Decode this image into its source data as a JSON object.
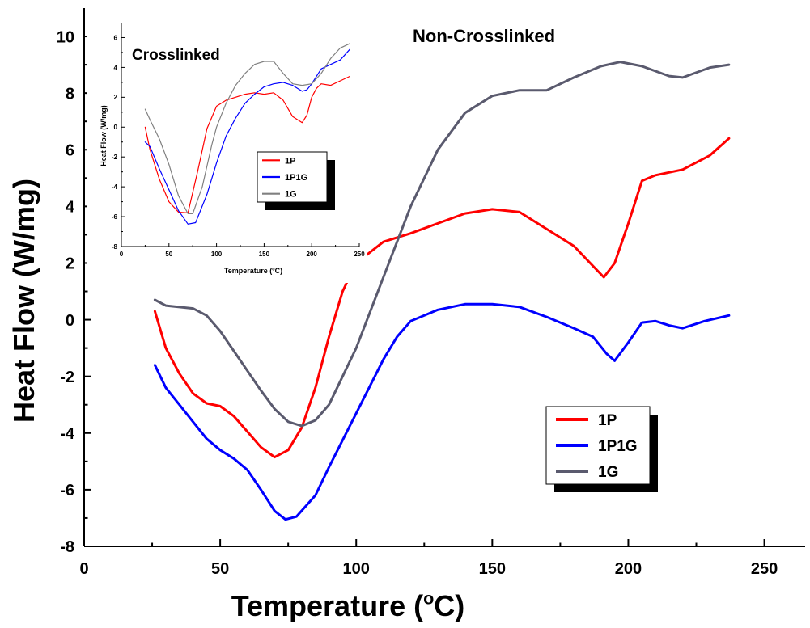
{
  "chart_data": [
    {
      "type": "line",
      "annotation": "Non-Crosslinked",
      "xlabel": "Temperature (",
      "xlabel_sup": "o",
      "xlabel_suffix": "C)",
      "ylabel": "Heat Flow (W/mg)",
      "xlim": [
        0,
        265
      ],
      "ylim": [
        -8,
        11
      ],
      "xticks": [
        0,
        50,
        100,
        150,
        200,
        250
      ],
      "yticks": [
        -8,
        -6,
        -4,
        -2,
        0,
        2,
        4,
        6,
        8,
        10
      ],
      "legend_position": "bottom-right",
      "series": [
        {
          "name": "1P",
          "color": "#ff0000",
          "points": [
            [
              26,
              0.3
            ],
            [
              30,
              -1.0
            ],
            [
              35,
              -1.9
            ],
            [
              40,
              -2.6
            ],
            [
              45,
              -2.95
            ],
            [
              50,
              -3.05
            ],
            [
              55,
              -3.4
            ],
            [
              60,
              -3.95
            ],
            [
              65,
              -4.5
            ],
            [
              70,
              -4.85
            ],
            [
              75,
              -4.6
            ],
            [
              80,
              -3.8
            ],
            [
              85,
              -2.4
            ],
            [
              90,
              -0.6
            ],
            [
              95,
              1.0
            ],
            [
              100,
              2.0
            ],
            [
              110,
              2.75
            ],
            [
              120,
              3.05
            ],
            [
              130,
              3.4
            ],
            [
              140,
              3.75
            ],
            [
              150,
              3.9
            ],
            [
              160,
              3.8
            ],
            [
              170,
              3.2
            ],
            [
              180,
              2.6
            ],
            [
              187,
              1.9
            ],
            [
              191,
              1.5
            ],
            [
              195,
              2.0
            ],
            [
              200,
              3.4
            ],
            [
              205,
              4.9
            ],
            [
              210,
              5.1
            ],
            [
              220,
              5.3
            ],
            [
              230,
              5.8
            ],
            [
              237,
              6.4
            ]
          ]
        },
        {
          "name": "1P1G",
          "color": "#0000ff",
          "points": [
            [
              26,
              -1.6
            ],
            [
              30,
              -2.4
            ],
            [
              35,
              -3.0
            ],
            [
              40,
              -3.6
            ],
            [
              45,
              -4.2
            ],
            [
              50,
              -4.6
            ],
            [
              55,
              -4.9
            ],
            [
              60,
              -5.3
            ],
            [
              65,
              -6.0
            ],
            [
              70,
              -6.75
            ],
            [
              74,
              -7.05
            ],
            [
              78,
              -6.95
            ],
            [
              85,
              -6.2
            ],
            [
              90,
              -5.2
            ],
            [
              100,
              -3.3
            ],
            [
              110,
              -1.4
            ],
            [
              115,
              -0.6
            ],
            [
              120,
              -0.05
            ],
            [
              130,
              0.35
            ],
            [
              140,
              0.55
            ],
            [
              150,
              0.55
            ],
            [
              160,
              0.45
            ],
            [
              170,
              0.1
            ],
            [
              180,
              -0.3
            ],
            [
              187,
              -0.6
            ],
            [
              192,
              -1.2
            ],
            [
              195,
              -1.45
            ],
            [
              200,
              -0.8
            ],
            [
              205,
              -0.1
            ],
            [
              210,
              -0.05
            ],
            [
              215,
              -0.2
            ],
            [
              220,
              -0.3
            ],
            [
              228,
              -0.05
            ],
            [
              237,
              0.15
            ]
          ]
        },
        {
          "name": "1G",
          "color": "#5a5a6e",
          "points": [
            [
              26,
              0.7
            ],
            [
              30,
              0.5
            ],
            [
              40,
              0.4
            ],
            [
              45,
              0.15
            ],
            [
              50,
              -0.4
            ],
            [
              55,
              -1.1
            ],
            [
              60,
              -1.8
            ],
            [
              65,
              -2.5
            ],
            [
              70,
              -3.15
            ],
            [
              75,
              -3.6
            ],
            [
              80,
              -3.75
            ],
            [
              85,
              -3.55
            ],
            [
              90,
              -3.0
            ],
            [
              100,
              -1.0
            ],
            [
              110,
              1.5
            ],
            [
              120,
              4.0
            ],
            [
              130,
              6.0
            ],
            [
              140,
              7.3
            ],
            [
              150,
              7.9
            ],
            [
              160,
              8.1
            ],
            [
              170,
              8.1
            ],
            [
              180,
              8.55
            ],
            [
              190,
              8.95
            ],
            [
              197,
              9.1
            ],
            [
              205,
              8.95
            ],
            [
              215,
              8.6
            ],
            [
              220,
              8.55
            ],
            [
              230,
              8.9
            ],
            [
              237,
              9.0
            ]
          ]
        }
      ]
    },
    {
      "type": "line",
      "annotation": "Crosslinked",
      "xlabel": "Temperature (",
      "xlabel_sup": "o",
      "xlabel_suffix": "C)",
      "ylabel": "Heat Flow (W/mg)",
      "xlim": [
        0,
        250
      ],
      "ylim": [
        -8,
        7
      ],
      "xticks": [
        0,
        50,
        100,
        150,
        200,
        250
      ],
      "yticks": [
        -8,
        -6,
        -4,
        -2,
        0,
        2,
        4,
        6
      ],
      "legend_position": "center",
      "series": [
        {
          "name": "1P",
          "color": "#ff0000",
          "points": [
            [
              25,
              0
            ],
            [
              30,
              -1.5
            ],
            [
              40,
              -3.5
            ],
            [
              50,
              -5.0
            ],
            [
              60,
              -5.7
            ],
            [
              70,
              -5.75
            ],
            [
              80,
              -3.0
            ],
            [
              90,
              -0.1
            ],
            [
              100,
              1.4
            ],
            [
              110,
              1.8
            ],
            [
              120,
              2.0
            ],
            [
              130,
              2.2
            ],
            [
              140,
              2.3
            ],
            [
              150,
              2.2
            ],
            [
              160,
              2.3
            ],
            [
              170,
              1.8
            ],
            [
              180,
              0.7
            ],
            [
              190,
              0.3
            ],
            [
              195,
              0.8
            ],
            [
              200,
              2.0
            ],
            [
              205,
              2.6
            ],
            [
              210,
              2.9
            ],
            [
              220,
              2.8
            ],
            [
              230,
              3.1
            ],
            [
              240,
              3.4
            ]
          ]
        },
        {
          "name": "1P1G",
          "color": "#0000ff",
          "points": [
            [
              25,
              -1.0
            ],
            [
              30,
              -1.3
            ],
            [
              40,
              -2.8
            ],
            [
              50,
              -4.2
            ],
            [
              60,
              -5.6
            ],
            [
              70,
              -6.5
            ],
            [
              78,
              -6.4
            ],
            [
              90,
              -4.5
            ],
            [
              100,
              -2.4
            ],
            [
              110,
              -0.6
            ],
            [
              120,
              0.6
            ],
            [
              130,
              1.6
            ],
            [
              140,
              2.2
            ],
            [
              150,
              2.7
            ],
            [
              160,
              2.9
            ],
            [
              170,
              3.0
            ],
            [
              180,
              2.8
            ],
            [
              190,
              2.4
            ],
            [
              195,
              2.5
            ],
            [
              200,
              2.9
            ],
            [
              210,
              3.9
            ],
            [
              220,
              4.2
            ],
            [
              230,
              4.5
            ],
            [
              240,
              5.2
            ]
          ]
        },
        {
          "name": "1G",
          "color": "#808080",
          "points": [
            [
              25,
              1.2
            ],
            [
              30,
              0.5
            ],
            [
              40,
              -0.8
            ],
            [
              50,
              -2.5
            ],
            [
              60,
              -4.6
            ],
            [
              70,
              -5.8
            ],
            [
              75,
              -5.8
            ],
            [
              85,
              -4.0
            ],
            [
              95,
              -1.2
            ],
            [
              100,
              0.0
            ],
            [
              110,
              1.6
            ],
            [
              120,
              2.8
            ],
            [
              130,
              3.6
            ],
            [
              140,
              4.2
            ],
            [
              150,
              4.4
            ],
            [
              160,
              4.4
            ],
            [
              170,
              3.6
            ],
            [
              180,
              2.9
            ],
            [
              190,
              2.8
            ],
            [
              200,
              2.9
            ],
            [
              210,
              3.6
            ],
            [
              220,
              4.6
            ],
            [
              230,
              5.3
            ],
            [
              240,
              5.6
            ]
          ]
        }
      ]
    }
  ]
}
